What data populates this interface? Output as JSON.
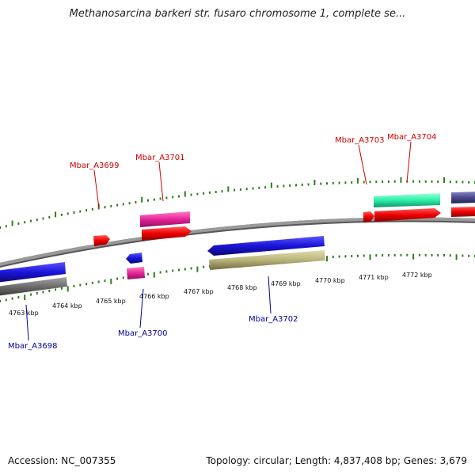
{
  "title": "Methanosarcina barkeri str. fusaro chromosome 1, complete se...",
  "footer": {
    "accession": "Accession: NC_007355",
    "summary": "Topology: circular; Length: 4,837,408 bp; Genes: 3,679"
  },
  "colors": {
    "backbone": "#8a8a8a",
    "tick": "#2e7d1e",
    "forward_label": "#cc0000",
    "reverse_label": "#00009c"
  },
  "axis_labels": [
    "4763 kbp",
    "4764 kbp",
    "4765 kbp",
    "4766 kbp",
    "4767 kbp",
    "4768 kbp",
    "4769 kbp",
    "4770 kbp",
    "4771 kbp",
    "4772 kbp"
  ],
  "gene_labels": {
    "forward": [
      "Mbar_A3699",
      "Mbar_A3701",
      "Mbar_A3703",
      "Mbar_A3704"
    ],
    "reverse": [
      "Mbar_A3698",
      "Mbar_A3700",
      "Mbar_A3702"
    ]
  },
  "feature_colors": {
    "red": "#ee0000",
    "magenta": "#e8239a",
    "blue": "#1a14d8",
    "grey": "#6d6d6d",
    "khaki": "#b9b47a",
    "teal": "#2af0a8",
    "slate": "#4b4a8e"
  }
}
